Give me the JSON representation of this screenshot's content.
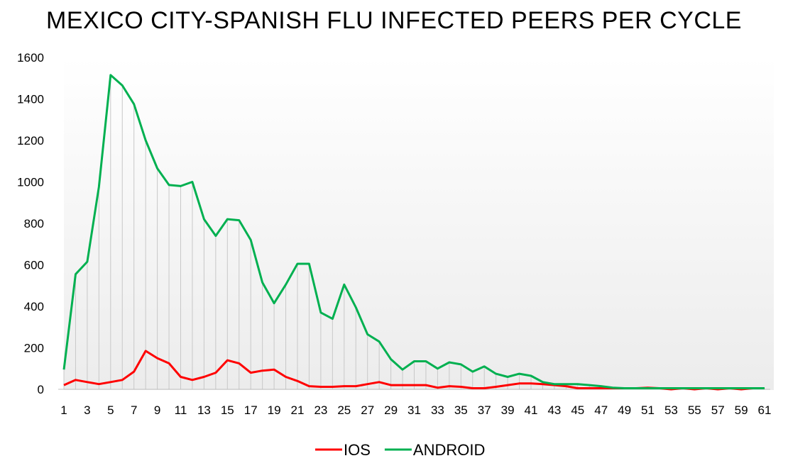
{
  "chart_data": {
    "type": "line",
    "title": "MEXICO CITY-SPANISH FLU INFECTED PEERS PER CYCLE",
    "xlabel": "",
    "ylabel": "",
    "x": [
      1,
      2,
      3,
      4,
      5,
      6,
      7,
      8,
      9,
      10,
      11,
      12,
      13,
      14,
      15,
      16,
      17,
      18,
      19,
      20,
      21,
      22,
      23,
      24,
      25,
      26,
      27,
      28,
      29,
      30,
      31,
      32,
      33,
      34,
      35,
      36,
      37,
      38,
      39,
      40,
      41,
      42,
      43,
      44,
      45,
      46,
      47,
      48,
      49,
      50,
      51,
      52,
      53,
      54,
      55,
      56,
      57,
      58,
      59,
      60,
      61
    ],
    "x_tick_labels": [
      "1",
      "3",
      "5",
      "7",
      "9",
      "11",
      "13",
      "15",
      "17",
      "19",
      "21",
      "23",
      "25",
      "27",
      "29",
      "31",
      "33",
      "35",
      "37",
      "39",
      "41",
      "43",
      "45",
      "47",
      "49",
      "51",
      "53",
      "55",
      "57",
      "59",
      "61"
    ],
    "y_tick_labels": [
      "0",
      "200",
      "400",
      "600",
      "800",
      "1000",
      "1200",
      "1400",
      "1600"
    ],
    "ylim": [
      0,
      1600
    ],
    "grid": "vertical drop lines",
    "legend_position": "bottom",
    "series": [
      {
        "name": "IOS",
        "color": "#ff0000",
        "values": [
          20,
          45,
          35,
          25,
          35,
          45,
          85,
          185,
          150,
          125,
          60,
          45,
          60,
          80,
          140,
          125,
          80,
          90,
          95,
          60,
          40,
          15,
          12,
          12,
          15,
          15,
          25,
          35,
          20,
          20,
          20,
          20,
          8,
          15,
          12,
          5,
          5,
          12,
          20,
          28,
          28,
          25,
          20,
          15,
          5,
          5,
          5,
          5,
          5,
          5,
          8,
          5,
          0,
          5,
          0,
          5,
          0,
          5,
          0,
          5,
          5
        ]
      },
      {
        "name": "ANDROID",
        "color": "#00b050",
        "values": [
          95,
          555,
          615,
          975,
          1515,
          1465,
          1375,
          1200,
          1065,
          985,
          980,
          1000,
          820,
          740,
          820,
          815,
          720,
          515,
          415,
          505,
          605,
          605,
          370,
          340,
          505,
          395,
          265,
          230,
          145,
          95,
          135,
          135,
          100,
          130,
          120,
          85,
          110,
          75,
          60,
          75,
          65,
          35,
          25,
          25,
          25,
          20,
          15,
          8,
          5,
          5,
          5,
          5,
          5,
          5,
          5,
          5,
          5,
          5,
          5,
          5,
          5
        ]
      }
    ]
  }
}
